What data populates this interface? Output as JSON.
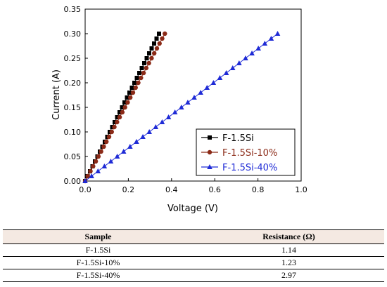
{
  "chart_data": {
    "type": "scatter",
    "xlabel": "Voltage (V)",
    "ylabel": "Current (A)",
    "xlim": [
      0.0,
      1.0
    ],
    "ylim": [
      0.0,
      0.35
    ],
    "xticks": [
      "0.0",
      "0.2",
      "0.4",
      "0.6",
      "0.8",
      "1.0"
    ],
    "yticks": [
      "0.00",
      "0.05",
      "0.10",
      "0.15",
      "0.20",
      "0.25",
      "0.30",
      "0.35"
    ],
    "grid": false,
    "legend_position": "lower-right",
    "series": [
      {
        "name": "F-1.5Si",
        "color": "#000000",
        "marker": "square",
        "x": [
          0.0,
          0.0114,
          0.0228,
          0.0342,
          0.0456,
          0.057,
          0.0684,
          0.0798,
          0.0912,
          0.1026,
          0.114,
          0.1254,
          0.1368,
          0.1482,
          0.1596,
          0.171,
          0.1824,
          0.1938,
          0.2052,
          0.2166,
          0.228,
          0.2394,
          0.2508,
          0.2622,
          0.2736,
          0.285,
          0.2964,
          0.3078,
          0.3192,
          0.3306,
          0.342
        ],
        "y": [
          0.0,
          0.01,
          0.02,
          0.03,
          0.04,
          0.05,
          0.06,
          0.07,
          0.08,
          0.09,
          0.1,
          0.11,
          0.12,
          0.13,
          0.14,
          0.15,
          0.16,
          0.17,
          0.18,
          0.19,
          0.2,
          0.21,
          0.22,
          0.23,
          0.24,
          0.25,
          0.26,
          0.27,
          0.28,
          0.29,
          0.3
        ]
      },
      {
        "name": "F-1.5Si-10%",
        "color": "#8b2a17",
        "marker": "circle",
        "x": [
          0.0,
          0.0123,
          0.0246,
          0.0369,
          0.0492,
          0.0615,
          0.0738,
          0.0861,
          0.0984,
          0.1107,
          0.123,
          0.1353,
          0.1476,
          0.1599,
          0.1722,
          0.1845,
          0.1968,
          0.2091,
          0.2214,
          0.2337,
          0.246,
          0.2583,
          0.2706,
          0.2829,
          0.2952,
          0.3075,
          0.3198,
          0.3321,
          0.3444,
          0.3567,
          0.369
        ],
        "y": [
          0.0,
          0.01,
          0.02,
          0.03,
          0.04,
          0.05,
          0.06,
          0.07,
          0.08,
          0.09,
          0.1,
          0.11,
          0.12,
          0.13,
          0.14,
          0.15,
          0.16,
          0.17,
          0.18,
          0.19,
          0.2,
          0.21,
          0.22,
          0.23,
          0.24,
          0.25,
          0.26,
          0.27,
          0.28,
          0.29,
          0.3
        ]
      },
      {
        "name": "F-1.5Si-40%",
        "color": "#1f2bd6",
        "marker": "triangle",
        "x": [
          0.0,
          0.0297,
          0.0594,
          0.0891,
          0.1188,
          0.1485,
          0.1782,
          0.2079,
          0.2376,
          0.2673,
          0.297,
          0.3267,
          0.3564,
          0.3861,
          0.4158,
          0.4455,
          0.4752,
          0.5049,
          0.5346,
          0.5643,
          0.594,
          0.6237,
          0.6534,
          0.6831,
          0.7128,
          0.7425,
          0.7722,
          0.8019,
          0.8316,
          0.8613,
          0.891
        ],
        "y": [
          0.0,
          0.01,
          0.02,
          0.03,
          0.04,
          0.05,
          0.06,
          0.07,
          0.08,
          0.09,
          0.1,
          0.11,
          0.12,
          0.13,
          0.14,
          0.15,
          0.16,
          0.17,
          0.18,
          0.19,
          0.2,
          0.21,
          0.22,
          0.23,
          0.24,
          0.25,
          0.26,
          0.27,
          0.28,
          0.29,
          0.3
        ]
      }
    ]
  },
  "table": {
    "headers": [
      "Sample",
      "Resistance (Ω)"
    ],
    "header_bg": "#f4e9e2",
    "rows": [
      [
        "F-1.5Si",
        "1.14"
      ],
      [
        "F-1.5Si-10%",
        "1.23"
      ],
      [
        "F-1.5Si-40%",
        "2.97"
      ]
    ]
  }
}
